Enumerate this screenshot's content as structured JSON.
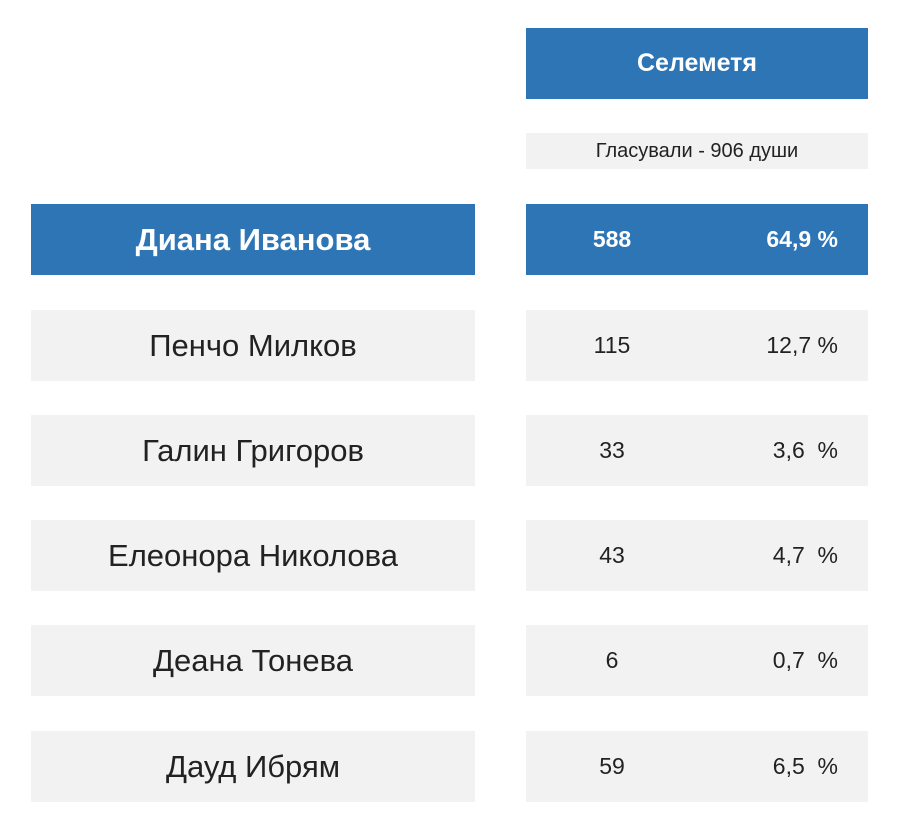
{
  "header": {
    "village": "Селеметя",
    "voted": "Гласували - 906 души"
  },
  "rows": [
    {
      "name": "Диана Иванова",
      "votes": "588",
      "percent": "64,9 %",
      "highlight": true
    },
    {
      "name": "Пенчо Милков",
      "votes": "115",
      "percent": "12,7 %",
      "highlight": false
    },
    {
      "name": "Галин Григоров",
      "votes": "33",
      "percent": "3,6  %",
      "highlight": false
    },
    {
      "name": "Елеонора Николова",
      "votes": "43",
      "percent": "4,7  %",
      "highlight": false
    },
    {
      "name": "Деана Тонева",
      "votes": "6",
      "percent": "0,7  %",
      "highlight": false
    },
    {
      "name": "Дауд Ибрям",
      "votes": "59",
      "percent": "6,5  %",
      "highlight": false
    }
  ],
  "colors": {
    "accent": "#2e75b6",
    "row_background": "#f2f2f2"
  }
}
